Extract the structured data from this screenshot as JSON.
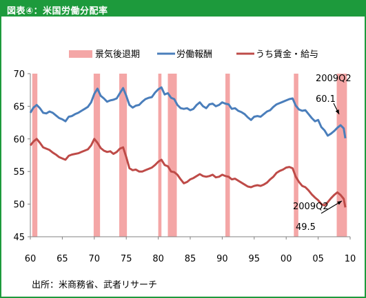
{
  "title": "図表④：米国労働分配率",
  "source": "出所：米商務省、武者リサーチ",
  "chart_data": {
    "type": "line",
    "x_range": [
      1960,
      2010
    ],
    "ylim": [
      45,
      70
    ],
    "y_ticks": [
      45,
      50,
      55,
      60,
      65,
      70
    ],
    "x_ticks": [
      {
        "value": 1960,
        "label": "60"
      },
      {
        "value": 1965,
        "label": "65"
      },
      {
        "value": 1970,
        "label": "70"
      },
      {
        "value": 1975,
        "label": "75"
      },
      {
        "value": 1980,
        "label": "80"
      },
      {
        "value": 1985,
        "label": "85"
      },
      {
        "value": 1990,
        "label": "90"
      },
      {
        "value": 1995,
        "label": "95"
      },
      {
        "value": 2000,
        "label": "00"
      },
      {
        "value": 2005,
        "label": "05"
      },
      {
        "value": 2010,
        "label": "10"
      }
    ],
    "legend": [
      {
        "key": "recession",
        "name": "景気後退期",
        "color": "#f4a6a6"
      },
      {
        "key": "labor",
        "name": "労働報酬",
        "color": "#4a7ebb"
      },
      {
        "key": "wages",
        "name": "うち賃金・給与",
        "color": "#be4b48"
      }
    ],
    "legend_position": "top",
    "grid": false,
    "recessions": [
      [
        1960.3,
        1961.1
      ],
      [
        1969.9,
        1970.9
      ],
      [
        1973.9,
        1975.1
      ],
      [
        1980.0,
        1980.5
      ],
      [
        1981.5,
        1982.9
      ],
      [
        1990.5,
        1991.2
      ],
      [
        2001.2,
        2001.9
      ],
      [
        2007.9,
        2009.5
      ]
    ],
    "series": [
      {
        "name": "労働報酬",
        "color": "#4a7ebb",
        "x": [
          1960.0,
          1960.5,
          1961.0,
          1961.5,
          1962.0,
          1962.5,
          1963.0,
          1963.5,
          1964.0,
          1964.5,
          1965.0,
          1965.5,
          1966.0,
          1966.5,
          1967.0,
          1967.5,
          1968.0,
          1968.5,
          1969.0,
          1969.5,
          1970.0,
          1970.5,
          1971.0,
          1971.5,
          1972.0,
          1972.5,
          1973.0,
          1973.5,
          1974.0,
          1974.5,
          1975.0,
          1975.5,
          1976.0,
          1976.5,
          1977.0,
          1977.5,
          1978.0,
          1978.5,
          1979.0,
          1979.5,
          1980.0,
          1980.5,
          1981.0,
          1981.5,
          1982.0,
          1982.5,
          1983.0,
          1983.5,
          1984.0,
          1984.5,
          1985.0,
          1985.5,
          1986.0,
          1986.5,
          1987.0,
          1987.5,
          1988.0,
          1988.5,
          1989.0,
          1989.5,
          1990.0,
          1990.5,
          1991.0,
          1991.5,
          1992.0,
          1992.5,
          1993.0,
          1993.5,
          1994.0,
          1994.5,
          1995.0,
          1995.5,
          1996.0,
          1996.5,
          1997.0,
          1997.5,
          1998.0,
          1998.5,
          1999.0,
          1999.5,
          2000.0,
          2000.5,
          2001.0,
          2001.5,
          2002.0,
          2002.5,
          2003.0,
          2003.5,
          2004.0,
          2004.5,
          2005.0,
          2005.5,
          2006.0,
          2006.5,
          2007.0,
          2007.5,
          2008.0,
          2008.5,
          2009.0,
          2009.25
        ],
        "values": [
          64.0,
          64.8,
          65.2,
          64.7,
          64.0,
          63.9,
          64.2,
          64.0,
          63.6,
          63.2,
          63.0,
          62.7,
          63.4,
          63.5,
          63.8,
          64.0,
          64.3,
          64.6,
          64.9,
          65.6,
          66.9,
          67.7,
          66.6,
          66.2,
          65.7,
          65.9,
          66.0,
          66.2,
          67.0,
          67.8,
          66.6,
          65.2,
          64.8,
          65.1,
          65.2,
          65.7,
          66.1,
          66.3,
          66.4,
          67.1,
          67.6,
          67.9,
          66.8,
          67.0,
          66.3,
          66.1,
          65.2,
          64.7,
          64.6,
          64.7,
          64.4,
          64.6,
          65.2,
          65.6,
          65.0,
          64.7,
          65.3,
          65.4,
          65.0,
          65.2,
          65.6,
          65.4,
          65.3,
          64.6,
          64.7,
          64.3,
          64.1,
          63.8,
          63.3,
          62.9,
          63.4,
          63.5,
          63.4,
          63.8,
          64.2,
          64.4,
          64.9,
          65.3,
          65.5,
          65.7,
          65.9,
          66.1,
          66.2,
          65.1,
          64.5,
          64.3,
          64.4,
          63.8,
          63.2,
          62.7,
          62.9,
          61.8,
          61.3,
          60.5,
          60.8,
          61.2,
          61.7,
          62.1,
          61.6,
          60.1
        ]
      },
      {
        "name": "うち賃金・給与",
        "color": "#be4b48",
        "x": [
          1960.0,
          1960.5,
          1961.0,
          1961.5,
          1962.0,
          1962.5,
          1963.0,
          1963.5,
          1964.0,
          1964.5,
          1965.0,
          1965.5,
          1966.0,
          1966.5,
          1967.0,
          1967.5,
          1968.0,
          1968.5,
          1969.0,
          1969.5,
          1970.0,
          1970.5,
          1971.0,
          1971.5,
          1972.0,
          1972.5,
          1973.0,
          1973.5,
          1974.0,
          1974.5,
          1975.0,
          1975.5,
          1976.0,
          1976.5,
          1977.0,
          1977.5,
          1978.0,
          1978.5,
          1979.0,
          1979.5,
          1980.0,
          1980.5,
          1981.0,
          1981.5,
          1982.0,
          1982.5,
          1983.0,
          1983.5,
          1984.0,
          1984.5,
          1985.0,
          1985.5,
          1986.0,
          1986.5,
          1987.0,
          1987.5,
          1988.0,
          1988.5,
          1989.0,
          1989.5,
          1990.0,
          1990.5,
          1991.0,
          1991.5,
          1992.0,
          1992.5,
          1993.0,
          1993.5,
          1994.0,
          1994.5,
          1995.0,
          1995.5,
          1996.0,
          1996.5,
          1997.0,
          1997.5,
          1998.0,
          1998.5,
          1999.0,
          1999.5,
          2000.0,
          2000.5,
          2001.0,
          2001.5,
          2002.0,
          2002.5,
          2003.0,
          2003.5,
          2004.0,
          2004.5,
          2005.0,
          2005.5,
          2006.0,
          2006.5,
          2007.0,
          2007.5,
          2008.0,
          2008.5,
          2009.0,
          2009.25
        ],
        "values": [
          59.0,
          59.6,
          60.0,
          59.4,
          58.7,
          58.5,
          58.3,
          57.9,
          57.6,
          57.2,
          57.0,
          56.8,
          57.4,
          57.6,
          57.7,
          57.8,
          58.0,
          58.2,
          58.4,
          59.0,
          60.0,
          59.4,
          58.6,
          58.2,
          58.0,
          58.1,
          57.7,
          58.0,
          58.5,
          58.7,
          57.2,
          55.5,
          55.2,
          55.3,
          55.0,
          55.0,
          55.2,
          55.4,
          55.6,
          56.0,
          56.5,
          56.8,
          56.0,
          55.8,
          55.0,
          54.9,
          54.5,
          53.8,
          53.2,
          53.4,
          53.8,
          54.0,
          54.3,
          54.6,
          54.3,
          54.2,
          54.3,
          54.5,
          54.1,
          54.2,
          54.5,
          54.3,
          54.2,
          53.8,
          53.9,
          53.6,
          53.3,
          53.0,
          52.7,
          52.6,
          52.8,
          52.9,
          52.8,
          53.0,
          53.3,
          53.8,
          54.2,
          54.8,
          55.1,
          55.3,
          55.6,
          55.7,
          55.5,
          54.2,
          53.4,
          52.8,
          52.6,
          52.1,
          51.5,
          51.0,
          50.6,
          50.0,
          49.8,
          50.3,
          50.9,
          51.4,
          51.8,
          51.4,
          50.8,
          49.5
        ]
      }
    ],
    "annotations": [
      {
        "series": "労働報酬",
        "x": 2009.25,
        "y": 60.1,
        "label_period": "2009Q2",
        "label_value": "60.1"
      },
      {
        "series": "うち賃金・給与",
        "x": 2009.25,
        "y": 49.5,
        "label_period": "2009Q2",
        "label_value": "49.5"
      }
    ]
  }
}
